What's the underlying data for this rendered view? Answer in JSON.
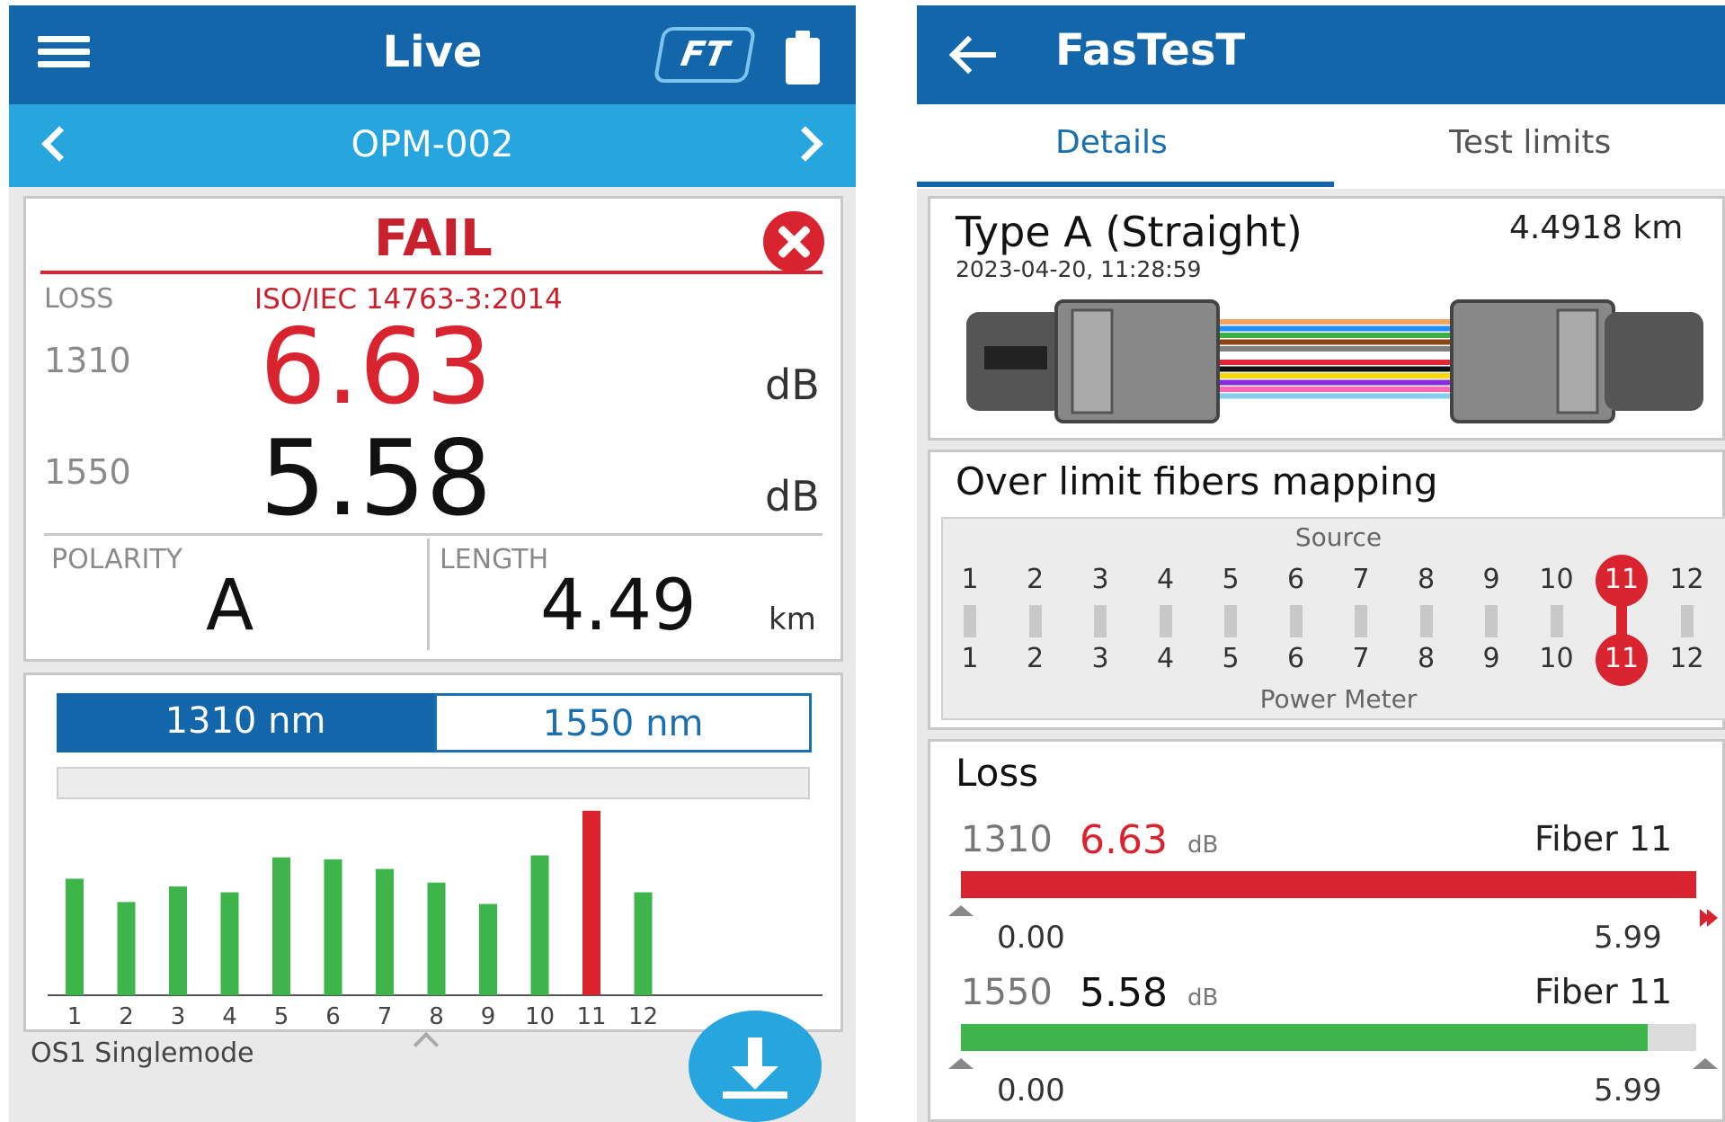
{
  "live": {
    "title": "Live",
    "ft_badge": "FT",
    "device": "OPM-002",
    "result": "FAIL",
    "loss_label": "LOSS",
    "standard": "ISO/IEC 14763-3:2014",
    "rows": [
      {
        "wavelength": "1310",
        "value": "6.63",
        "unit": "dB"
      },
      {
        "wavelength": "1550",
        "value": "5.58",
        "unit": "dB"
      }
    ],
    "polarity_label": "POLARITY",
    "polarity_value": "A",
    "length_label": "LENGTH",
    "length_value": "4.49",
    "length_unit": "km",
    "wavelength_tabs": [
      "1310 nm",
      "1550 nm"
    ],
    "fiber_type": "OS1 Singlemode"
  },
  "chart_data": {
    "type": "bar",
    "categories": [
      "1",
      "2",
      "3",
      "4",
      "5",
      "6",
      "7",
      "8",
      "9",
      "10",
      "11",
      "12"
    ],
    "values": [
      0.6,
      0.48,
      0.56,
      0.53,
      0.71,
      0.7,
      0.65,
      0.58,
      0.47,
      0.72,
      0.95,
      0.53
    ],
    "ylim": [
      0,
      1
    ],
    "colors": {
      "pass": "#3db54a",
      "fail": "#d9232e"
    },
    "fail_index": 10
  },
  "fastest": {
    "title": "FasTesT",
    "tabs": [
      "Details",
      "Test limits"
    ],
    "type_title": "Type A (Straight)",
    "date": "2023-04-20, 11:28:59",
    "length": "4.4918 km",
    "map_title": "Over limit fibers mapping",
    "source_label": "Source",
    "meter_label": "Power Meter",
    "fibers": [
      "1",
      "2",
      "3",
      "4",
      "5",
      "6",
      "7",
      "8",
      "9",
      "10",
      "11",
      "12"
    ],
    "highlight_fiber": 11,
    "loss_title": "Loss",
    "loss_rows": [
      {
        "wavelength": "1310",
        "value": "6.63",
        "unit": "dB",
        "fiber": "Fiber 11",
        "min": "0.00",
        "max": "5.99",
        "fill_fraction": 1.0,
        "status": "fail"
      },
      {
        "wavelength": "1550",
        "value": "5.58",
        "unit": "dB",
        "fiber": "Fiber 11",
        "min": "0.00",
        "max": "5.99",
        "fill_fraction": 0.934,
        "status": "pass"
      }
    ],
    "cable_colors": [
      "#f4a460",
      "#1e90ff",
      "#3cb043",
      "#8b4513",
      "#808080",
      "#ffffff",
      "#e32636",
      "#111111",
      "#ffd700",
      "#8a2be2",
      "#ff69b4",
      "#87ceeb"
    ]
  },
  "colors": {
    "primary": "#1466aa",
    "accent": "#27a5de",
    "fail": "#d9232e",
    "pass": "#3db54a"
  }
}
